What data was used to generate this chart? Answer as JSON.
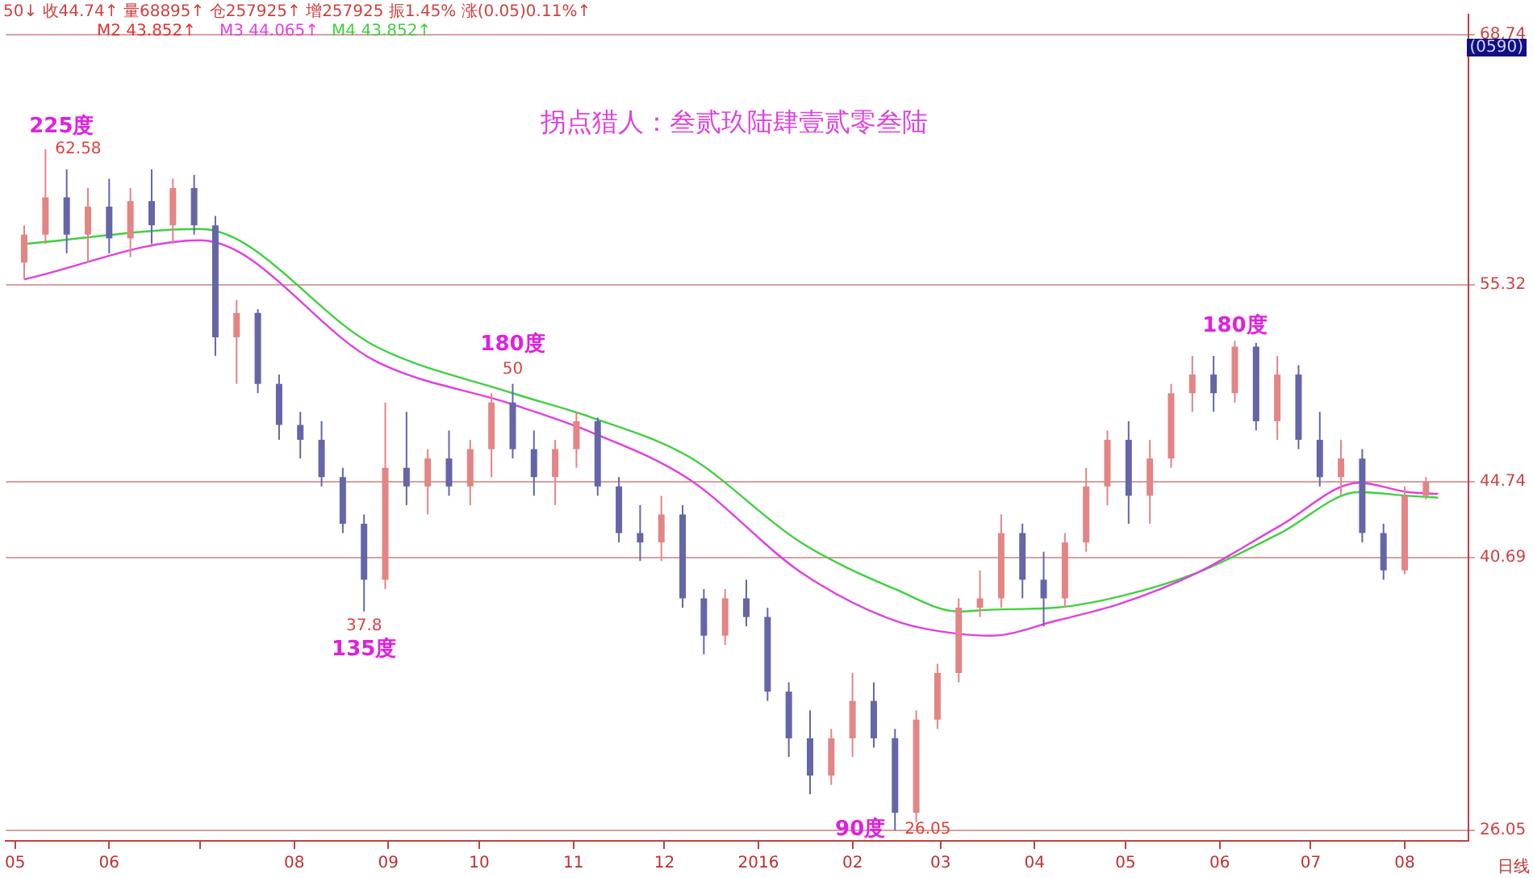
{
  "chart_data": {
    "type": "candlestick",
    "title": "拐点猎人：叁贰玖陆肆壹贰零叁陆",
    "annotations": [
      "50↓ 收44.74↑ 量68895↑ 仓257925↑ 增257925 振1.45% 涨(0.05)0.11%↑",
      "(0590)",
      "日线",
      "M2 43.852↑",
      {
        "text": "62.58",
        "x": "2015-05-11",
        "y": 62.58
      },
      {
        "text": "225度",
        "x": "2015-05-11",
        "y": 62.58
      },
      {
        "text": "50",
        "x": "2015-10-12",
        "y": 50.0
      },
      {
        "text": "180度",
        "x": "2015-10-12",
        "y": 50.0
      },
      {
        "text": "37.8",
        "x": "2015-08-24",
        "y": 37.8
      },
      {
        "text": "135度",
        "x": "2015-08-24",
        "y": 37.8
      },
      {
        "text": "26.05",
        "x": "2016-02-15",
        "y": 26.05
      },
      {
        "text": "90度",
        "x": "2016-02-15",
        "y": 26.05
      },
      {
        "text": "180度",
        "x": "2016-06-06",
        "y": 52.3
      }
    ],
    "x": [
      "2015-05-04",
      "2015-05-11",
      "2015-05-18",
      "2015-05-25",
      "2015-06-01",
      "2015-06-08",
      "2015-06-15",
      "2015-06-22",
      "2015-06-29",
      "2015-07-06",
      "2015-07-13",
      "2015-07-20",
      "2015-07-27",
      "2015-08-03",
      "2015-08-10",
      "2015-08-17",
      "2015-08-24",
      "2015-08-31",
      "2015-09-07",
      "2015-09-14",
      "2015-09-21",
      "2015-09-28",
      "2015-10-05",
      "2015-10-12",
      "2015-10-19",
      "2015-10-26",
      "2015-11-02",
      "2015-11-09",
      "2015-11-16",
      "2015-11-23",
      "2015-11-30",
      "2015-12-07",
      "2015-12-14",
      "2015-12-21",
      "2015-12-28",
      "2016-01-04",
      "2016-01-11",
      "2016-01-18",
      "2016-01-25",
      "2016-02-01",
      "2016-02-08",
      "2016-02-15",
      "2016-02-22",
      "2016-02-29",
      "2016-03-07",
      "2016-03-14",
      "2016-03-21",
      "2016-03-28",
      "2016-04-04",
      "2016-04-11",
      "2016-04-18",
      "2016-04-25",
      "2016-05-02",
      "2016-05-09",
      "2016-05-16",
      "2016-05-23",
      "2016-05-30",
      "2016-06-06",
      "2016-06-13",
      "2016-06-20",
      "2016-06-27",
      "2016-07-04",
      "2016-07-11",
      "2016-07-18",
      "2016-07-25",
      "2016-08-01",
      "2016-08-08"
    ],
    "ohlc": [
      [
        56.5,
        58.5,
        55.6,
        58.0
      ],
      [
        58.0,
        62.58,
        57.5,
        60.0
      ],
      [
        60.0,
        61.5,
        57.0,
        58.0
      ],
      [
        58.0,
        60.5,
        56.5,
        59.5
      ],
      [
        59.5,
        61.0,
        57.0,
        57.8
      ],
      [
        57.8,
        60.5,
        56.8,
        59.8
      ],
      [
        59.8,
        61.5,
        57.5,
        58.5
      ],
      [
        58.5,
        61.0,
        57.5,
        60.5
      ],
      [
        60.5,
        61.2,
        58.0,
        58.5
      ],
      [
        58.5,
        59.0,
        51.5,
        52.5
      ],
      [
        52.5,
        54.5,
        50.0,
        53.8
      ],
      [
        53.8,
        54.0,
        49.5,
        50.0
      ],
      [
        50.0,
        50.5,
        47.0,
        47.8
      ],
      [
        47.8,
        48.5,
        46.0,
        47.0
      ],
      [
        47.0,
        48.0,
        44.5,
        45.0
      ],
      [
        45.0,
        45.5,
        42.0,
        42.5
      ],
      [
        42.5,
        43.0,
        37.8,
        39.5
      ],
      [
        39.5,
        49.0,
        39.0,
        45.5
      ],
      [
        45.5,
        48.5,
        43.5,
        44.5
      ],
      [
        44.5,
        46.5,
        43.0,
        46.0
      ],
      [
        46.0,
        47.5,
        44.0,
        44.5
      ],
      [
        44.5,
        47.0,
        43.5,
        46.5
      ],
      [
        46.5,
        49.5,
        45.0,
        49.0
      ],
      [
        49.0,
        50.0,
        46.0,
        46.5
      ],
      [
        46.5,
        47.5,
        44.0,
        45.0
      ],
      [
        45.0,
        47.0,
        43.5,
        46.5
      ],
      [
        46.5,
        48.5,
        45.5,
        48.0
      ],
      [
        48.0,
        48.2,
        44.0,
        44.5
      ],
      [
        44.5,
        45.0,
        41.5,
        42.0
      ],
      [
        42.0,
        43.5,
        40.5,
        41.5
      ],
      [
        41.5,
        44.0,
        40.5,
        43.0
      ],
      [
        43.0,
        43.5,
        38.0,
        38.5
      ],
      [
        38.5,
        39.0,
        35.5,
        36.5
      ],
      [
        36.5,
        39.0,
        36.0,
        38.5
      ],
      [
        38.5,
        39.5,
        37.0,
        37.5
      ],
      [
        37.5,
        38.0,
        33.0,
        33.5
      ],
      [
        33.5,
        34.0,
        30.0,
        31.0
      ],
      [
        31.0,
        32.5,
        28.0,
        29.0
      ],
      [
        29.0,
        31.5,
        28.5,
        31.0
      ],
      [
        31.0,
        34.5,
        30.0,
        33.0
      ],
      [
        33.0,
        34.0,
        30.5,
        31.0
      ],
      [
        31.0,
        31.5,
        26.05,
        27.0
      ],
      [
        27.0,
        32.5,
        26.5,
        32.0
      ],
      [
        32.0,
        35.0,
        31.5,
        34.5
      ],
      [
        34.5,
        38.5,
        34.0,
        38.0
      ],
      [
        38.0,
        40.0,
        37.5,
        38.5
      ],
      [
        38.5,
        43.0,
        38.0,
        42.0
      ],
      [
        42.0,
        42.5,
        38.5,
        39.5
      ],
      [
        39.5,
        41.0,
        37.0,
        38.5
      ],
      [
        38.5,
        42.0,
        38.0,
        41.5
      ],
      [
        41.5,
        45.5,
        41.0,
        44.5
      ],
      [
        44.5,
        47.5,
        43.5,
        47.0
      ],
      [
        47.0,
        48.0,
        42.5,
        44.0
      ],
      [
        44.0,
        47.0,
        42.5,
        46.0
      ],
      [
        46.0,
        50.0,
        45.5,
        49.5
      ],
      [
        49.5,
        51.5,
        48.5,
        50.5
      ],
      [
        50.5,
        51.5,
        48.5,
        49.5
      ],
      [
        49.5,
        52.3,
        49.0,
        52.0
      ],
      [
        52.0,
        52.2,
        47.5,
        48.0
      ],
      [
        48.0,
        51.5,
        47.0,
        50.5
      ],
      [
        50.5,
        51.0,
        46.5,
        47.0
      ],
      [
        47.0,
        48.5,
        44.5,
        45.0
      ],
      [
        45.0,
        47.0,
        44.0,
        46.0
      ],
      [
        46.0,
        46.5,
        41.5,
        42.0
      ],
      [
        42.0,
        42.5,
        39.5,
        40.0
      ],
      [
        40.0,
        44.5,
        39.8,
        44.0
      ],
      [
        44.0,
        45.0,
        43.8,
        44.74
      ]
    ],
    "colors": [
      "#e38585",
      "#e38585",
      "#6466a8",
      "#e38585",
      "#6466a8",
      "#e38585",
      "#6466a8",
      "#e38585",
      "#6466a8",
      "#6466a8",
      "#e38585",
      "#6466a8",
      "#6466a8",
      "#6466a8",
      "#6466a8",
      "#6466a8",
      "#6466a8",
      "#e38585",
      "#6466a8",
      "#e38585",
      "#6466a8",
      "#e38585",
      "#e38585",
      "#6466a8",
      "#6466a8",
      "#e38585",
      "#e38585",
      "#6466a8",
      "#6466a8",
      "#6466a8",
      "#e38585",
      "#6466a8",
      "#6466a8",
      "#e38585",
      "#6466a8",
      "#6466a8",
      "#6466a8",
      "#6466a8",
      "#e38585",
      "#e38585",
      "#6466a8",
      "#6466a8",
      "#e38585",
      "#e38585",
      "#e38585",
      "#e38585",
      "#e38585",
      "#6466a8",
      "#6466a8",
      "#e38585",
      "#e38585",
      "#e38585",
      "#6466a8",
      "#e38585",
      "#e38585",
      "#e38585",
      "#6466a8",
      "#e38585",
      "#6466a8",
      "#e38585",
      "#6466a8",
      "#6466a8",
      "#e38585",
      "#6466a8",
      "#6466a8",
      "#e38585",
      "#e38585"
    ],
    "series": [
      {
        "name": "M3 44.065↑",
        "type": "line",
        "color": "#e040e0",
        "x": [
          "2015-05-04",
          "2015-07-01",
          "2015-08-28",
          "2015-10-12",
          "2015-11-07",
          "2015-12-09",
          "2016-01-15",
          "2016-02-15",
          "2016-03-07",
          "2016-03-18",
          "2016-04-08",
          "2016-04-29",
          "2016-05-25",
          "2016-06-21",
          "2016-07-17",
          "2016-08-02",
          "2016-08-12"
        ],
        "values": [
          55.6,
          57.7,
          51.2,
          48.9,
          47.4,
          44.9,
          39.9,
          37.3,
          36.6,
          36.5,
          37.3,
          38.2,
          39.9,
          42.4,
          44.7,
          44.2,
          44.1
        ]
      },
      {
        "name": "M4 43.852↑",
        "type": "line",
        "color": "#40d040",
        "x": [
          "2015-05-04",
          "2015-07-01",
          "2015-08-28",
          "2015-10-12",
          "2015-11-07",
          "2015-12-09",
          "2016-01-15",
          "2016-02-15",
          "2016-03-07",
          "2016-03-18",
          "2016-04-08",
          "2016-04-29",
          "2016-05-25",
          "2016-06-21",
          "2016-07-17",
          "2016-08-02",
          "2016-08-12"
        ],
        "values": [
          57.5,
          58.3,
          52.0,
          49.5,
          48.2,
          46.1,
          41.5,
          39.0,
          37.8,
          37.9,
          38.0,
          38.6,
          39.9,
          42.0,
          44.2,
          44.0,
          43.9
        ]
      }
    ],
    "xlim": [
      "2015-04-28",
      "2016-08-22"
    ],
    "xticks": [
      {
        "value": "2015-05-01",
        "label": "05"
      },
      {
        "value": "2015-06-01",
        "label": "06"
      },
      {
        "value": "2015-07-01",
        "label": null
      },
      {
        "value": "2015-08-01",
        "label": "08"
      },
      {
        "value": "2015-09-01",
        "label": "09"
      },
      {
        "value": "2015-10-01",
        "label": "10"
      },
      {
        "value": "2015-11-01",
        "label": "11"
      },
      {
        "value": "2015-12-01",
        "label": "12"
      },
      {
        "value": "2016-01-01",
        "label": "2016"
      },
      {
        "value": "2016-02-01",
        "label": "02"
      },
      {
        "value": "2016-03-01",
        "label": "03"
      },
      {
        "value": "2016-04-01",
        "label": "04"
      },
      {
        "value": "2016-05-01",
        "label": "05"
      },
      {
        "value": "2016-06-01",
        "label": "06"
      },
      {
        "value": "2016-07-01",
        "label": "07"
      },
      {
        "value": "2016-08-01",
        "label": "08"
      }
    ],
    "ylim": [
      25.5,
      69.8
    ],
    "yticks": [
      26.05,
      40.69,
      44.74,
      55.32,
      68.74
    ],
    "grid": "y",
    "legend": "top left"
  }
}
